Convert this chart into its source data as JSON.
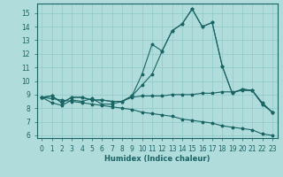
{
  "xlabel": "Humidex (Indice chaleur)",
  "background_color": "#b0dcdc",
  "grid_color": "#90c8c8",
  "line_color": "#1a6464",
  "xlim": [
    -0.5,
    23.5
  ],
  "ylim": [
    5.8,
    15.7
  ],
  "yticks": [
    6,
    7,
    8,
    9,
    10,
    11,
    12,
    13,
    14,
    15
  ],
  "xticks": [
    0,
    1,
    2,
    3,
    4,
    5,
    6,
    7,
    8,
    9,
    10,
    11,
    12,
    13,
    14,
    15,
    16,
    17,
    18,
    19,
    20,
    21,
    22,
    23
  ],
  "series": {
    "line1": [
      8.8,
      8.9,
      8.4,
      8.8,
      8.8,
      8.6,
      8.6,
      8.5,
      8.5,
      8.9,
      10.5,
      12.7,
      12.2,
      13.7,
      14.2,
      15.3,
      14.0,
      14.3,
      11.1,
      9.1,
      9.4,
      9.3,
      8.3,
      7.7
    ],
    "line2": [
      8.8,
      8.9,
      8.4,
      8.8,
      8.8,
      8.6,
      8.6,
      8.5,
      8.5,
      8.9,
      9.7,
      10.5,
      12.2,
      13.7,
      14.2,
      15.3,
      14.0,
      14.3,
      11.1,
      9.1,
      9.4,
      9.3,
      8.3,
      7.7
    ],
    "line3": [
      8.8,
      8.4,
      8.2,
      8.6,
      8.5,
      8.7,
      8.3,
      8.3,
      8.5,
      8.8,
      8.9,
      8.9,
      8.9,
      9.0,
      9.0,
      9.0,
      9.1,
      9.1,
      9.2,
      9.2,
      9.3,
      9.3,
      8.4,
      7.7
    ],
    "line4": [
      8.8,
      8.7,
      8.6,
      8.5,
      8.4,
      8.3,
      8.2,
      8.1,
      8.0,
      7.9,
      7.7,
      7.6,
      7.5,
      7.4,
      7.2,
      7.1,
      7.0,
      6.9,
      6.7,
      6.6,
      6.5,
      6.4,
      6.1,
      6.0
    ]
  }
}
